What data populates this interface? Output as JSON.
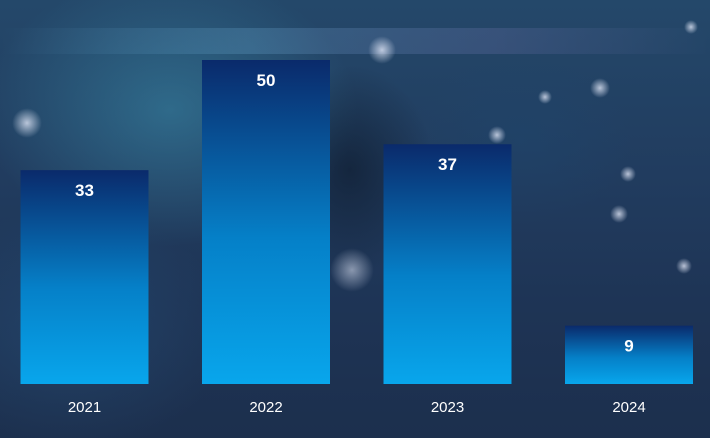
{
  "chart_data": {
    "type": "bar",
    "categories": [
      "2021",
      "2022",
      "2023",
      "2024"
    ],
    "values": [
      33,
      50,
      37,
      9
    ],
    "title": "",
    "xlabel": "",
    "ylabel": "",
    "ylim": [
      0,
      50
    ],
    "grid": false,
    "data_labels": true,
    "colors": {
      "bar_top": "#0a2a6b",
      "bar_bottom": "#08a6ec",
      "text": "#ffffff"
    }
  }
}
